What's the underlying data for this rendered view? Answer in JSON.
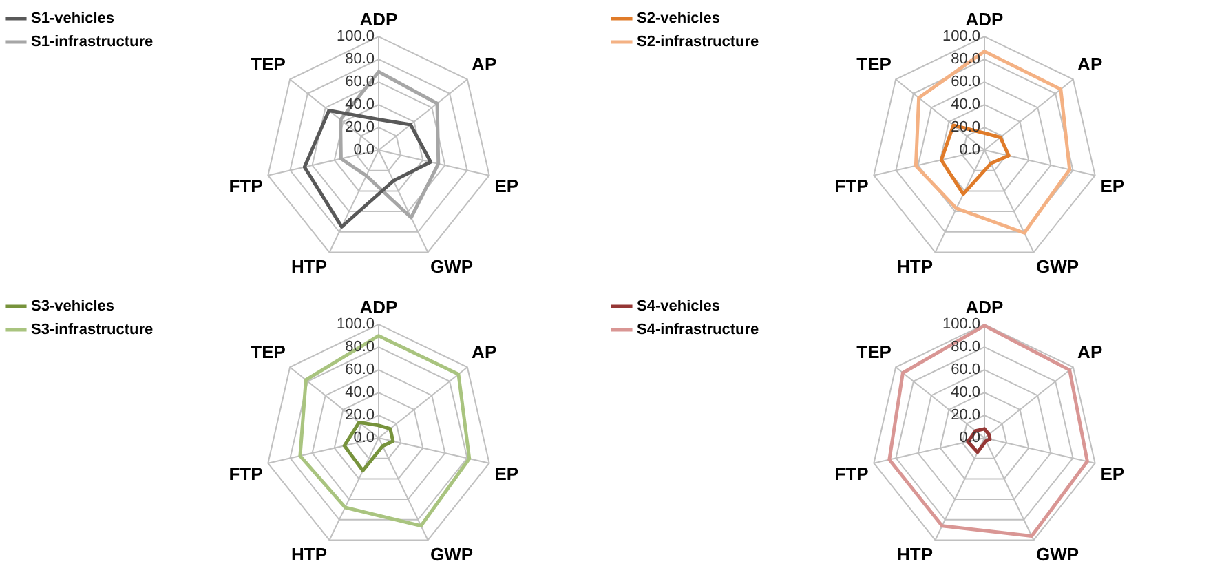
{
  "chart_data": [
    {
      "type": "radar",
      "categories": [
        "ADP",
        "AP",
        "EP",
        "GWP",
        "HTP",
        "FTP",
        "TEP"
      ],
      "ylim": [
        0,
        100
      ],
      "yticks": [
        {
          "value": 0,
          "label": "0.0"
        },
        {
          "value": 20,
          "label": "20.0"
        },
        {
          "value": 40,
          "label": "40.0"
        },
        {
          "value": 60,
          "label": "60.0"
        },
        {
          "value": 80,
          "label": "80.0"
        },
        {
          "value": 100,
          "label": "100.0"
        }
      ],
      "grid": true,
      "legend": "top left",
      "marker": "none",
      "series": [
        {
          "name": "S1-vehicles",
          "color": "#595959",
          "values": [
            27,
            36,
            47,
            30,
            75,
            67,
            56
          ]
        },
        {
          "name": "S1-infrastructure",
          "color": "#a6a6a6",
          "values": [
            69,
            66,
            54,
            66,
            25,
            34,
            43
          ]
        }
      ]
    },
    {
      "type": "radar",
      "categories": [
        "ADP",
        "AP",
        "EP",
        "GWP",
        "HTP",
        "FTP",
        "TEP"
      ],
      "ylim": [
        0,
        100
      ],
      "yticks": [
        {
          "value": 0,
          "label": "0.0"
        },
        {
          "value": 20,
          "label": "20.0"
        },
        {
          "value": 40,
          "label": "40.0"
        },
        {
          "value": 60,
          "label": "60.0"
        },
        {
          "value": 80,
          "label": "80.0"
        },
        {
          "value": 100,
          "label": "100.0"
        }
      ],
      "grid": true,
      "legend": "top left",
      "marker": "none",
      "series": [
        {
          "name": "S2-vehicles",
          "color": "#e07b29",
          "values": [
            15,
            18,
            22,
            13,
            43,
            39,
            35
          ]
        },
        {
          "name": "S2-infrastructure",
          "color": "#f4b183",
          "values": [
            87,
            86,
            77,
            81,
            57,
            62,
            74
          ]
        }
      ]
    },
    {
      "type": "radar",
      "categories": [
        "ADP",
        "AP",
        "EP",
        "GWP",
        "HTP",
        "FTP",
        "TEP"
      ],
      "ylim": [
        0,
        100
      ],
      "yticks": [
        {
          "value": 0,
          "label": "0.0"
        },
        {
          "value": 20,
          "label": "20.0"
        },
        {
          "value": 40,
          "label": "40.0"
        },
        {
          "value": 60,
          "label": "60.0"
        },
        {
          "value": 80,
          "label": "80.0"
        },
        {
          "value": 100,
          "label": "100.0"
        }
      ],
      "grid": true,
      "legend": "top left",
      "marker": "none",
      "series": [
        {
          "name": "S3-vehicles",
          "color": "#77933c",
          "values": [
            11,
            13,
            13,
            8,
            32,
            31,
            22
          ]
        },
        {
          "name": "S3-infrastructure",
          "color": "#a9c47f",
          "values": [
            90,
            90,
            82,
            86,
            68,
            71,
            82
          ]
        }
      ]
    },
    {
      "type": "radar",
      "categories": [
        "ADP",
        "AP",
        "EP",
        "GWP",
        "HTP",
        "FTP",
        "TEP"
      ],
      "ylim": [
        0,
        100
      ],
      "yticks": [
        {
          "value": 0,
          "label": "0.0"
        },
        {
          "value": 20,
          "label": "20.0"
        },
        {
          "value": 40,
          "label": "40.0"
        },
        {
          "value": 60,
          "label": "60.0"
        },
        {
          "value": 80,
          "label": "80.0"
        },
        {
          "value": 100,
          "label": "100.0"
        }
      ],
      "grid": true,
      "legend": "top left",
      "marker": "none",
      "series": [
        {
          "name": "S4-vehicles",
          "color": "#953735",
          "values": [
            8,
            5,
            5,
            3,
            14,
            15,
            10
          ]
        },
        {
          "name": "S4-infrastructure",
          "color": "#d99694",
          "values": [
            99,
            96,
            93,
            96,
            86,
            86,
            92
          ]
        }
      ]
    }
  ]
}
